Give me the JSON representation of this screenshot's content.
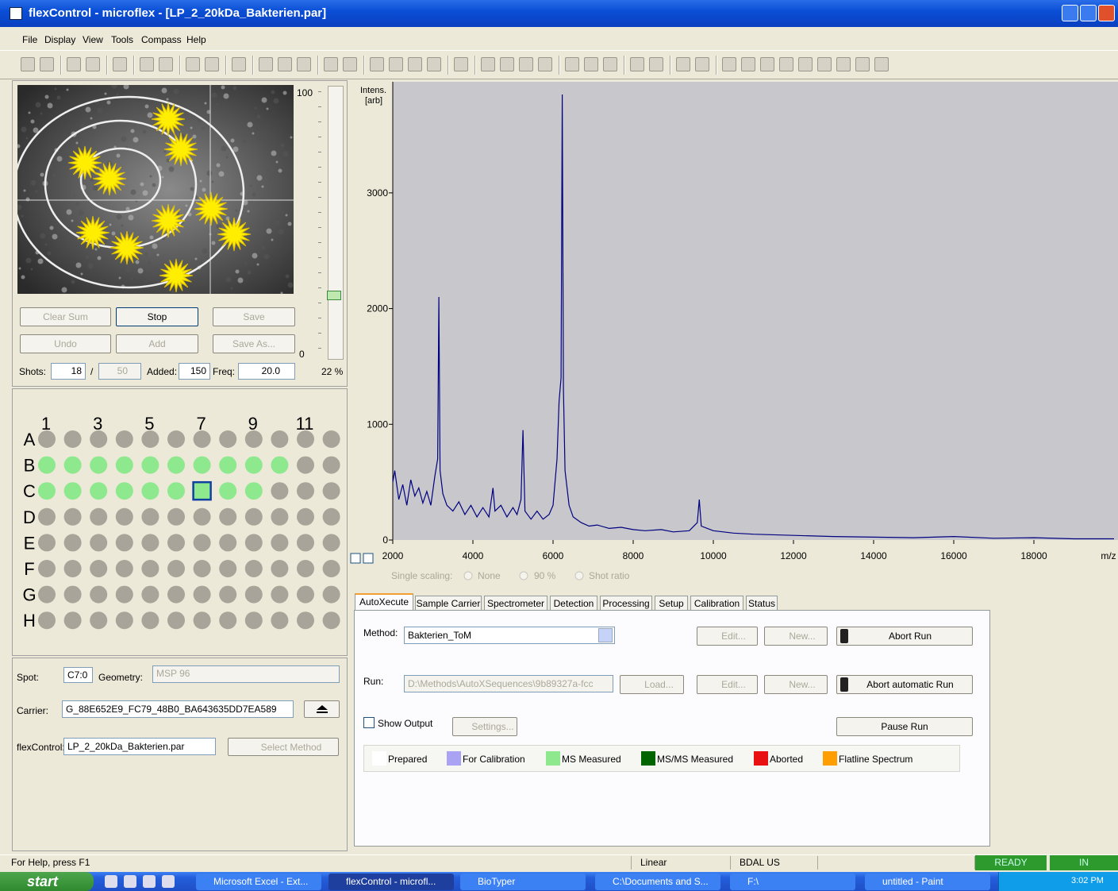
{
  "window": {
    "title": "flexControl - microflex - [LP_2_20kDa_Bakterien.par]",
    "menu": [
      "File",
      "Display",
      "View",
      "Tools",
      "Compass",
      "Help"
    ]
  },
  "camera": {
    "scale_max": "100",
    "scale_min": "0",
    "percent": "22 %",
    "buttons": [
      "Clear Sum",
      "Stop",
      "Save",
      "Undo",
      "Add",
      "Save As..."
    ]
  },
  "shots": {
    "label": "Shots:",
    "value": "18",
    "separator": "/",
    "max": "50",
    "added_label": "Added:",
    "added": "150",
    "freq_label": "Freq:",
    "freq": "20.0"
  },
  "plate": {
    "columns": [
      "1",
      "3",
      "5",
      "7",
      "9",
      "11"
    ],
    "rows": [
      "A",
      "B",
      "C",
      "D",
      "E",
      "F",
      "G",
      "H"
    ]
  },
  "chart_data": {
    "type": "line",
    "y_label": "Intens.",
    "y_unit": "[arb]",
    "x_label": "m/z",
    "color": "#000080",
    "x": [
      2000,
      2050,
      2150,
      2250,
      2350,
      2450,
      2550,
      2650,
      2750,
      2850,
      2950,
      3050,
      3120,
      3150,
      3180,
      3250,
      3350,
      3500,
      3650,
      3800,
      3950,
      4100,
      4250,
      4400,
      4500,
      4550,
      4700,
      4850,
      5000,
      5100,
      5200,
      5250,
      5300,
      5450,
      5600,
      5750,
      5900,
      6000,
      6100,
      6150,
      6200,
      6230,
      6260,
      6300,
      6400,
      6500,
      6700,
      6900,
      7100,
      7400,
      7700,
      8000,
      8300,
      8700,
      9000,
      9400,
      9600,
      9650,
      9700,
      10000,
      10500,
      11000,
      12000,
      13000,
      14000,
      15000,
      16000,
      17000,
      18000,
      19000,
      20000
    ],
    "values": [
      500,
      600,
      350,
      480,
      300,
      520,
      380,
      450,
      320,
      420,
      300,
      550,
      700,
      2100,
      600,
      400,
      300,
      250,
      330,
      220,
      300,
      200,
      280,
      200,
      450,
      250,
      300,
      200,
      280,
      220,
      350,
      950,
      250,
      180,
      250,
      180,
      220,
      300,
      700,
      1200,
      1400,
      3850,
      1300,
      600,
      300,
      200,
      150,
      120,
      130,
      100,
      110,
      90,
      80,
      90,
      70,
      80,
      150,
      350,
      120,
      80,
      60,
      50,
      40,
      30,
      25,
      20,
      30,
      15,
      20,
      10,
      10
    ],
    "xlim": [
      2000,
      20000
    ],
    "ylim": [
      0,
      3960
    ],
    "xticks": [
      2000,
      4000,
      6000,
      8000,
      10000,
      12000,
      14000,
      16000,
      18000
    ],
    "yticks": [
      0,
      1000,
      2000,
      3000
    ],
    "grid": false
  },
  "scaling": {
    "label": "Single scaling:",
    "options": [
      "None",
      "90 %",
      "Shot ratio"
    ]
  },
  "tabs": [
    "AutoXecute",
    "Sample Carrier",
    "Spectrometer",
    "Detection",
    "Processing",
    "Setup",
    "Calibration",
    "Status"
  ],
  "autoxecute": {
    "method_label": "Method:",
    "method": "Bakterien_ToM",
    "edit": "Edit...",
    "new": "New...",
    "abort": "Abort Run",
    "run_label": "Run:",
    "run": "D:\\Methods\\AutoXSequences\\9b89327a-fcc",
    "load": "Load...",
    "abort_auto": "Abort automatic Run",
    "show_output": "Show Output",
    "settings": "Settings...",
    "pause": "Pause Run"
  },
  "legend": [
    {
      "label": "Prepared",
      "color": "#ffffff"
    },
    {
      "label": "For Calibration",
      "color": "#aaa2f2"
    },
    {
      "label": "MS Measured",
      "color": "#8ee88e"
    },
    {
      "label": "MS/MS Measured",
      "color": "#006400"
    },
    {
      "label": "Aborted",
      "color": "#e81010"
    },
    {
      "label": "Flatline Spectrum",
      "color": "#ff9e00"
    }
  ],
  "spot_info": {
    "spot_label": "Spot:",
    "spot": "C7:0",
    "geometry_label": "Geometry:",
    "geometry": "MSP 96",
    "carrier_label": "Carrier:",
    "carrier": "G_88E652E9_FC79_48B0_BA643635DD7EA589",
    "flexcontrol_label": "flexControl:",
    "flexcontrol": "LP_2_20kDa_Bakterien.par",
    "select_method": "Select Method"
  },
  "status_bar": {
    "help": "For Help, press F1",
    "mode": "Linear",
    "locale": "BDAL US",
    "state": "READY",
    "in": "IN"
  },
  "taskbar": {
    "start": "start",
    "tasks": [
      "Microsoft Excel - Ext...",
      "flexControl - microfl...",
      "BioTyper",
      "C:\\Documents and S...",
      "F:\\",
      "untitled - Paint"
    ],
    "clock": "3:02 PM"
  }
}
